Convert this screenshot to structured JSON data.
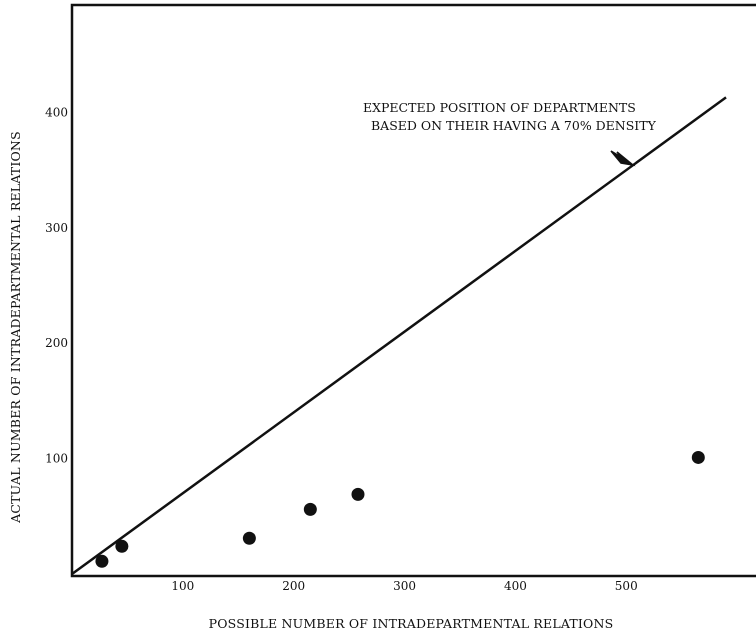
{
  "chart_data": {
    "type": "scatter",
    "title": "",
    "xlabel": "POSSIBLE NUMBER OF INTRADEPARTMENTAL RELATIONS",
    "ylabel": "ACTUAL NUMBER OF INTRADEPARTMENTAL RELATIONS",
    "xlim": [
      0,
      590
    ],
    "ylim": [
      0,
      490
    ],
    "x_ticks": [
      100,
      200,
      300,
      400,
      500
    ],
    "y_ticks": [
      100,
      200,
      300,
      400
    ],
    "x_tick_labels": [
      "100",
      "200",
      "300",
      "400",
      "500"
    ],
    "y_tick_labels": [
      "100",
      "200",
      "300",
      "400"
    ],
    "grid": false,
    "points": [
      {
        "x": 27,
        "y": 11
      },
      {
        "x": 45,
        "y": 24
      },
      {
        "x": 160,
        "y": 31
      },
      {
        "x": 215,
        "y": 56
      },
      {
        "x": 258,
        "y": 69
      },
      {
        "x": 565,
        "y": 101
      }
    ],
    "reference_line": {
      "slope": 0.7,
      "intercept": 0,
      "x_range": [
        0,
        590
      ]
    },
    "annotation": {
      "line1": "EXPECTED POSITION OF DEPARTMENTS",
      "line2": "BASED ON THEIR HAVING A 70% DENSITY"
    }
  }
}
